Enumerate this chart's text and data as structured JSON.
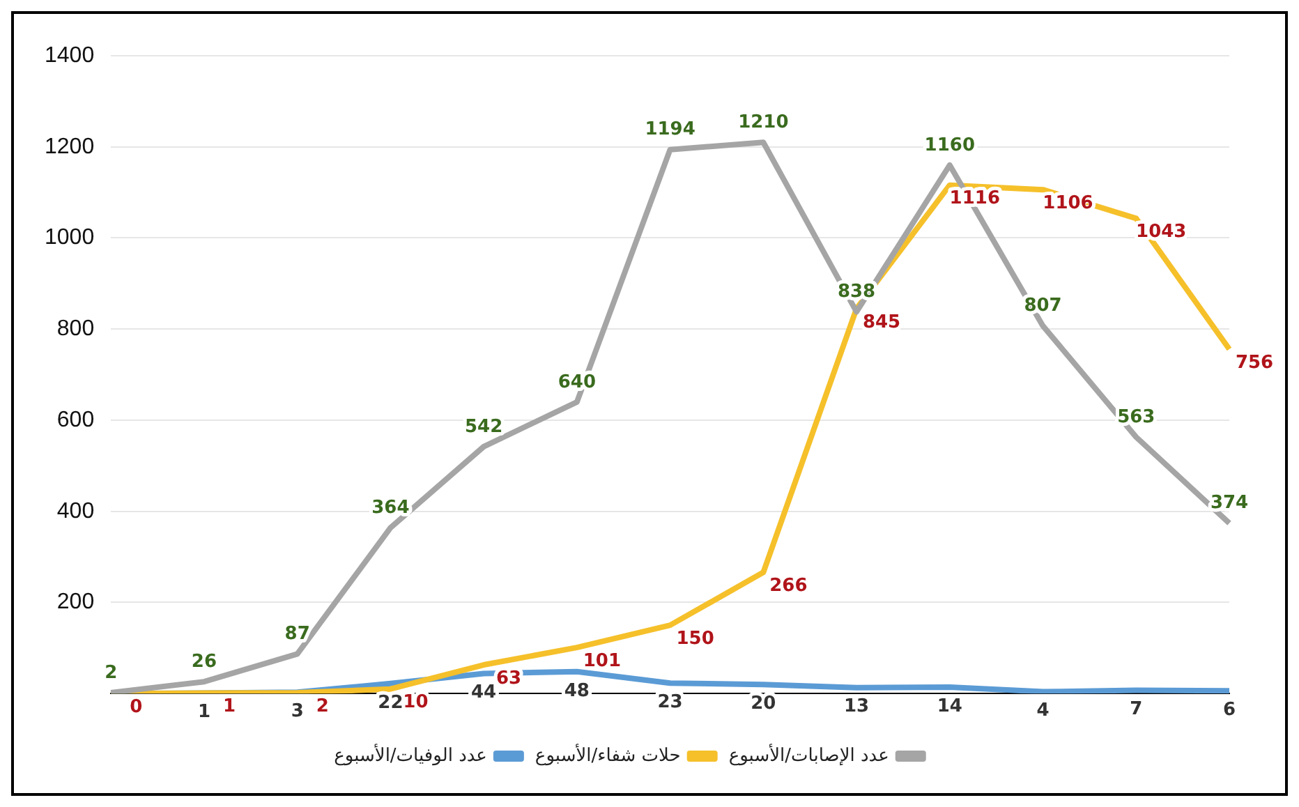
{
  "chart_data": {
    "type": "line",
    "categories": [
      null,
      null,
      null,
      null,
      null,
      null,
      null,
      null,
      null,
      null,
      null,
      null,
      null
    ],
    "series": [
      {
        "name": "عدد الإصابات/الأسبوع",
        "color": "#a5a5a5",
        "values": [
          2,
          26,
          87,
          364,
          542,
          640,
          1194,
          1210,
          838,
          1160,
          807,
          563,
          374
        ],
        "value_labels": [
          "2",
          "26",
          "87",
          "364",
          "542",
          "640",
          "1194",
          "1210",
          "838",
          "1160",
          "807",
          "563",
          "374"
        ]
      },
      {
        "name": "حلات شفاء/الأسبوع",
        "color": "#f5c02a",
        "values": [
          0,
          1,
          2,
          10,
          63,
          101,
          150,
          266,
          845,
          1116,
          1106,
          1043,
          756
        ],
        "value_labels": [
          "0",
          "1",
          "2",
          "10",
          "63",
          "101",
          "150",
          "266",
          "845",
          "1116",
          "1106",
          "1043",
          "756"
        ]
      },
      {
        "name": "عدد الوفيات/الأسبوع",
        "color": "#5b9bd5",
        "values": [
          0,
          1,
          3,
          22,
          44,
          48,
          23,
          20,
          13,
          14,
          4,
          7,
          6
        ],
        "value_labels": [
          null,
          "1",
          "3",
          "22",
          "44",
          "48",
          "23",
          "20",
          "13",
          "14",
          "4",
          "7",
          "6"
        ]
      }
    ],
    "ylim": [
      0,
      1400
    ],
    "yticks": [
      {
        "value": 0,
        "label": null
      },
      200,
      400,
      600,
      800,
      1000,
      1200,
      1400
    ],
    "grid": "y",
    "legend": "bottom",
    "marker": "none",
    "line_style": "solid"
  }
}
